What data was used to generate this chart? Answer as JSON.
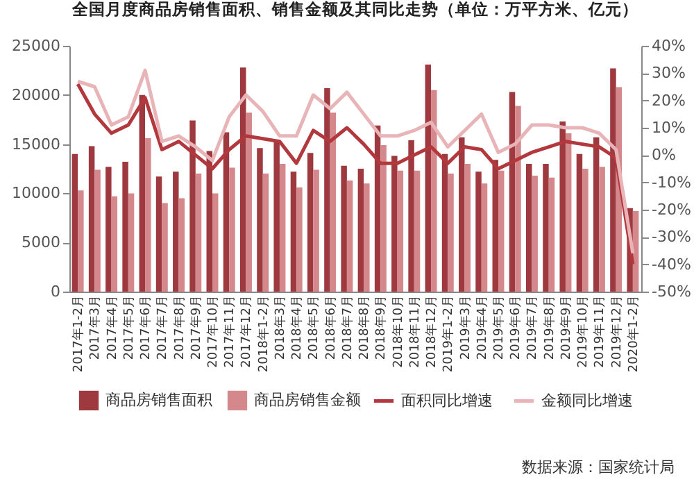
{
  "chart_data": {
    "type": "bar",
    "title": "全国月度商品房销售面积、销售金额及其同比走势（单位：万平方米、亿元）",
    "categories": [
      "2017年1-2月",
      "2017年3月",
      "2017年4月",
      "2017年5月",
      "2017年6月",
      "2017年7月",
      "2017年8月",
      "2017年9月",
      "2017年10月",
      "2017年11月",
      "2017年12月",
      "2018年1-2月",
      "2018年3月",
      "2018年4月",
      "2018年5月",
      "2018年6月",
      "2018年7月",
      "2018年8月",
      "2018年9月",
      "2018年10月",
      "2018年11月",
      "2018年12月",
      "2019年1-2月",
      "2019年3月",
      "2019年4月",
      "2019年5月",
      "2019年6月",
      "2019年7月",
      "2019年8月",
      "2019年9月",
      "2019年10月",
      "2019年11月",
      "2019年12月",
      "2020年1-2月"
    ],
    "series": [
      {
        "name": "商品房销售面积",
        "type": "bar",
        "color": "#9e3a3f",
        "values": [
          14000,
          14800,
          12700,
          13200,
          20000,
          11700,
          12200,
          17400,
          14300,
          16200,
          22800,
          14600,
          15400,
          12200,
          14100,
          20700,
          12800,
          12500,
          16900,
          13800,
          15400,
          23100,
          14000,
          15700,
          12200,
          13400,
          20300,
          13000,
          13000,
          17300,
          14000,
          15700,
          22700,
          8500
        ]
      },
      {
        "name": "商品房销售金额",
        "type": "bar",
        "color": "#d4888c",
        "values": [
          10300,
          12400,
          9700,
          10000,
          15600,
          9000,
          9500,
          12000,
          10000,
          12600,
          18200,
          12000,
          13000,
          10600,
          12400,
          18200,
          11300,
          11000,
          14900,
          12300,
          12300,
          20500,
          12000,
          13000,
          11000,
          12300,
          18900,
          11800,
          11600,
          16100,
          12500,
          12700,
          20800,
          8200
        ]
      },
      {
        "name": "面积同比增速",
        "type": "line",
        "axis": "y2",
        "color": "#b2383d",
        "values": [
          26,
          15,
          8,
          11,
          21,
          2,
          5,
          0,
          -5,
          2,
          7,
          6,
          5,
          -3,
          9,
          5,
          10,
          4,
          -3,
          -3,
          0,
          3,
          -3,
          3,
          2,
          -5,
          -2,
          1,
          3,
          5,
          4,
          3,
          -1,
          -40
        ]
      },
      {
        "name": "金额同比增速",
        "type": "line",
        "axis": "y2",
        "color": "#e9b4b7",
        "values": [
          27,
          25,
          11,
          14,
          31,
          5,
          7,
          3,
          -2,
          14,
          22,
          16,
          7,
          7,
          22,
          17,
          23,
          15,
          7,
          7,
          9,
          12,
          3,
          9,
          15,
          1,
          4,
          11,
          11,
          10,
          10,
          8,
          2,
          -36
        ]
      }
    ],
    "ylim": [
      0,
      25000
    ],
    "yticks": [
      0,
      5000,
      10000,
      15000,
      20000,
      25000
    ],
    "y2lim": [
      -50,
      40
    ],
    "y2ticks": [
      {
        "value": -50,
        "label": "-50%"
      },
      {
        "value": -40,
        "label": "-40%"
      },
      {
        "value": -30,
        "label": "-30%"
      },
      {
        "value": -20,
        "label": "-20%"
      },
      {
        "value": -10,
        "label": "-10%"
      },
      {
        "value": 0,
        "label": "0%"
      },
      {
        "value": 10,
        "label": "10%"
      },
      {
        "value": 20,
        "label": "20%"
      },
      {
        "value": 30,
        "label": "30%"
      },
      {
        "value": 40,
        "label": "40%"
      }
    ],
    "legend": "bottom",
    "line_style": "solid",
    "annotations": [
      "数据来源：国家统计局"
    ]
  }
}
